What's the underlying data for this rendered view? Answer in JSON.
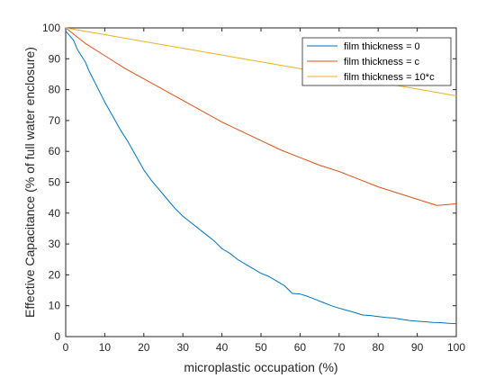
{
  "chart_data": {
    "type": "line",
    "title": "",
    "xlabel": "microplastic occupation (%)",
    "ylabel": "Effective Capacitance (% of full water enclosure)",
    "xlim": [
      0,
      100
    ],
    "ylim": [
      0,
      100
    ],
    "xticks": [
      "0",
      "10",
      "20",
      "30",
      "40",
      "50",
      "60",
      "70",
      "80",
      "90",
      "100"
    ],
    "yticks": [
      "0",
      "10",
      "20",
      "30",
      "40",
      "50",
      "60",
      "70",
      "80",
      "90",
      "100"
    ],
    "grid": false,
    "legend_position": "top-right",
    "series": [
      {
        "name": "film thickness = 0",
        "color": "#0072BD",
        "x": [
          0,
          1,
          2,
          3,
          4,
          5,
          6,
          8,
          10,
          12,
          14,
          16,
          18,
          20,
          22,
          24,
          26,
          28,
          30,
          32,
          34,
          36,
          38,
          40,
          42,
          44,
          46,
          48,
          50,
          52,
          54,
          56,
          58,
          60,
          62,
          64,
          66,
          68,
          70,
          72,
          74,
          76,
          78,
          80,
          82,
          84,
          86,
          88,
          90,
          92,
          94,
          96,
          98,
          100
        ],
        "y": [
          99,
          97.5,
          96,
          93,
          91,
          89,
          86,
          81,
          76,
          71.5,
          67,
          63,
          58.5,
          54,
          50.5,
          47.5,
          44.5,
          41.5,
          39,
          37,
          35,
          33,
          31,
          28.5,
          27,
          25,
          23.5,
          22,
          20.5,
          19.5,
          18,
          16.5,
          14,
          13.8,
          13,
          12,
          11,
          10,
          9.2,
          8.5,
          7.8,
          7,
          6.8,
          6.5,
          6.2,
          6,
          5.6,
          5.2,
          5,
          4.8,
          4.6,
          4.5,
          4.3,
          4.2
        ]
      },
      {
        "name": "film thickness = c",
        "color": "#D95319",
        "x": [
          0,
          5,
          10,
          15,
          20,
          25,
          30,
          35,
          40,
          45,
          50,
          55,
          60,
          65,
          70,
          75,
          80,
          85,
          90,
          95,
          100
        ],
        "y": [
          100,
          95,
          91,
          87,
          83.5,
          80,
          76.5,
          73,
          69.5,
          66.5,
          63.5,
          60.5,
          58,
          55.5,
          53.5,
          51,
          48.5,
          46.5,
          44.5,
          42.5,
          43
        ]
      },
      {
        "name": "film thickness = 10*c",
        "color": "#EDB120",
        "x": [
          0,
          10,
          20,
          30,
          40,
          50,
          60,
          70,
          80,
          90,
          100
        ],
        "y": [
          100,
          97.8,
          95.6,
          93.4,
          91.2,
          89,
          86.8,
          84.6,
          82.4,
          80.2,
          78
        ]
      }
    ]
  }
}
